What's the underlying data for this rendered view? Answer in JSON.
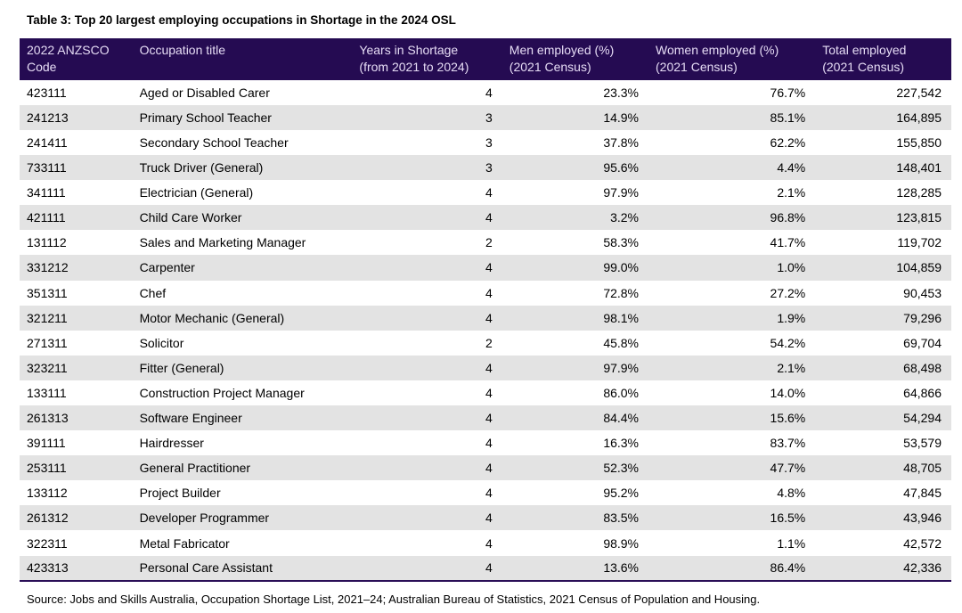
{
  "title": "Table 3: Top 20 largest employing occupations in Shortage in the 2024 OSL",
  "source": "Source: Jobs and Skills Australia, Occupation Shortage List, 2021–24; Australian Bureau of Statistics, 2021 Census of Population and Housing.",
  "colors": {
    "header_bg": "#250b52",
    "header_text": "#e6dcf5",
    "row_alt": "#e3e3e3",
    "border": "#2a0e57"
  },
  "table": {
    "columns": [
      {
        "key": "code",
        "numeric": false,
        "label": "2022 ANZSCO\nCode"
      },
      {
        "key": "title",
        "numeric": false,
        "label": "Occupation title"
      },
      {
        "key": "years",
        "numeric": true,
        "label": "Years in Shortage\n(from 2021 to 2024)"
      },
      {
        "key": "men",
        "numeric": true,
        "label": "Men employed (%)\n(2021 Census)"
      },
      {
        "key": "women",
        "numeric": true,
        "label": "Women employed (%)\n(2021 Census)"
      },
      {
        "key": "total",
        "numeric": true,
        "label": "Total employed\n(2021 Census)"
      }
    ],
    "rows": [
      {
        "code": "423111",
        "title": "Aged or Disabled Carer",
        "years": "4",
        "men": "23.3%",
        "women": "76.7%",
        "total": "227,542"
      },
      {
        "code": "241213",
        "title": "Primary School Teacher",
        "years": "3",
        "men": "14.9%",
        "women": "85.1%",
        "total": "164,895"
      },
      {
        "code": "241411",
        "title": "Secondary School Teacher",
        "years": "3",
        "men": "37.8%",
        "women": "62.2%",
        "total": "155,850"
      },
      {
        "code": "733111",
        "title": "Truck Driver (General)",
        "years": "3",
        "men": "95.6%",
        "women": "4.4%",
        "total": "148,401"
      },
      {
        "code": "341111",
        "title": "Electrician (General)",
        "years": "4",
        "men": "97.9%",
        "women": "2.1%",
        "total": "128,285"
      },
      {
        "code": "421111",
        "title": "Child Care Worker",
        "years": "4",
        "men": "3.2%",
        "women": "96.8%",
        "total": "123,815"
      },
      {
        "code": "131112",
        "title": "Sales and Marketing Manager",
        "years": "2",
        "men": "58.3%",
        "women": "41.7%",
        "total": "119,702"
      },
      {
        "code": "331212",
        "title": "Carpenter",
        "years": "4",
        "men": "99.0%",
        "women": "1.0%",
        "total": "104,859"
      },
      {
        "code": "351311",
        "title": "Chef",
        "years": "4",
        "men": "72.8%",
        "women": "27.2%",
        "total": "90,453"
      },
      {
        "code": "321211",
        "title": "Motor Mechanic (General)",
        "years": "4",
        "men": "98.1%",
        "women": "1.9%",
        "total": "79,296"
      },
      {
        "code": "271311",
        "title": "Solicitor",
        "years": "2",
        "men": "45.8%",
        "women": "54.2%",
        "total": "69,704"
      },
      {
        "code": "323211",
        "title": "Fitter (General)",
        "years": "4",
        "men": "97.9%",
        "women": "2.1%",
        "total": "68,498"
      },
      {
        "code": "133111",
        "title": "Construction Project Manager",
        "years": "4",
        "men": "86.0%",
        "women": "14.0%",
        "total": "64,866"
      },
      {
        "code": "261313",
        "title": "Software Engineer",
        "years": "4",
        "men": "84.4%",
        "women": "15.6%",
        "total": "54,294"
      },
      {
        "code": "391111",
        "title": "Hairdresser",
        "years": "4",
        "men": "16.3%",
        "women": "83.7%",
        "total": "53,579"
      },
      {
        "code": "253111",
        "title": "General Practitioner",
        "years": "4",
        "men": "52.3%",
        "women": "47.7%",
        "total": "48,705"
      },
      {
        "code": "133112",
        "title": "Project Builder",
        "years": "4",
        "men": "95.2%",
        "women": "4.8%",
        "total": "47,845"
      },
      {
        "code": "261312",
        "title": "Developer Programmer",
        "years": "4",
        "men": "83.5%",
        "women": "16.5%",
        "total": "43,946"
      },
      {
        "code": "322311",
        "title": "Metal Fabricator",
        "years": "4",
        "men": "98.9%",
        "women": "1.1%",
        "total": "42,572"
      },
      {
        "code": "423313",
        "title": "Personal Care Assistant",
        "years": "4",
        "men": "13.6%",
        "women": "86.4%",
        "total": "42,336"
      }
    ]
  }
}
